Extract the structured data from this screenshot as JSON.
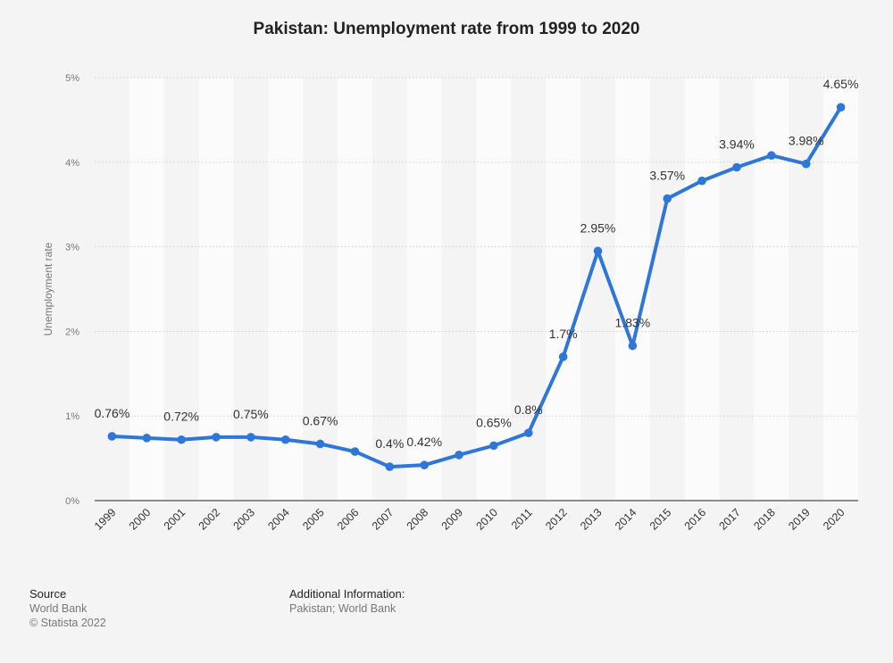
{
  "chart_data": {
    "type": "line",
    "title": "Pakistan: Unemployment rate from 1999 to 2020",
    "ylabel": "Unemployment rate",
    "xlabel": "",
    "ylim": [
      0,
      5
    ],
    "yticks": [
      "0%",
      "1%",
      "2%",
      "3%",
      "4%",
      "5%"
    ],
    "categories": [
      "1999",
      "2000",
      "2001",
      "2002",
      "2003",
      "2004",
      "2005",
      "2006",
      "2007",
      "2008",
      "2009",
      "2010",
      "2011",
      "2012",
      "2013",
      "2014",
      "2015",
      "2016",
      "2017",
      "2018",
      "2019",
      "2020"
    ],
    "series": [
      {
        "values": [
          0.76,
          0.74,
          0.72,
          0.75,
          0.75,
          0.72,
          0.67,
          0.58,
          0.4,
          0.42,
          0.54,
          0.65,
          0.8,
          1.7,
          2.95,
          1.83,
          3.57,
          3.78,
          3.94,
          4.08,
          3.98,
          4.65
        ],
        "labels": [
          "0.76%",
          "",
          "0.72%",
          "",
          "0.75%",
          "",
          "0.67%",
          "",
          "0.4%",
          "0.42%",
          "",
          "0.65%",
          "0.8%",
          "1.7%",
          "2.95%",
          "1.83%",
          "3.57%",
          "",
          "3.94%",
          "",
          "3.98%",
          "4.65%"
        ],
        "color": "#2f76d9"
      }
    ],
    "grid": true,
    "colors": {
      "line": "#2f76d9",
      "band": "#fbfbfb",
      "grid": "#cfcfcf",
      "axis": "#222222"
    }
  },
  "footer": {
    "source_heading": "Source",
    "source_line1": "World Bank",
    "source_line2": "© Statista 2022",
    "info_heading": "Additional Information:",
    "info_line1": "Pakistan; World Bank"
  }
}
